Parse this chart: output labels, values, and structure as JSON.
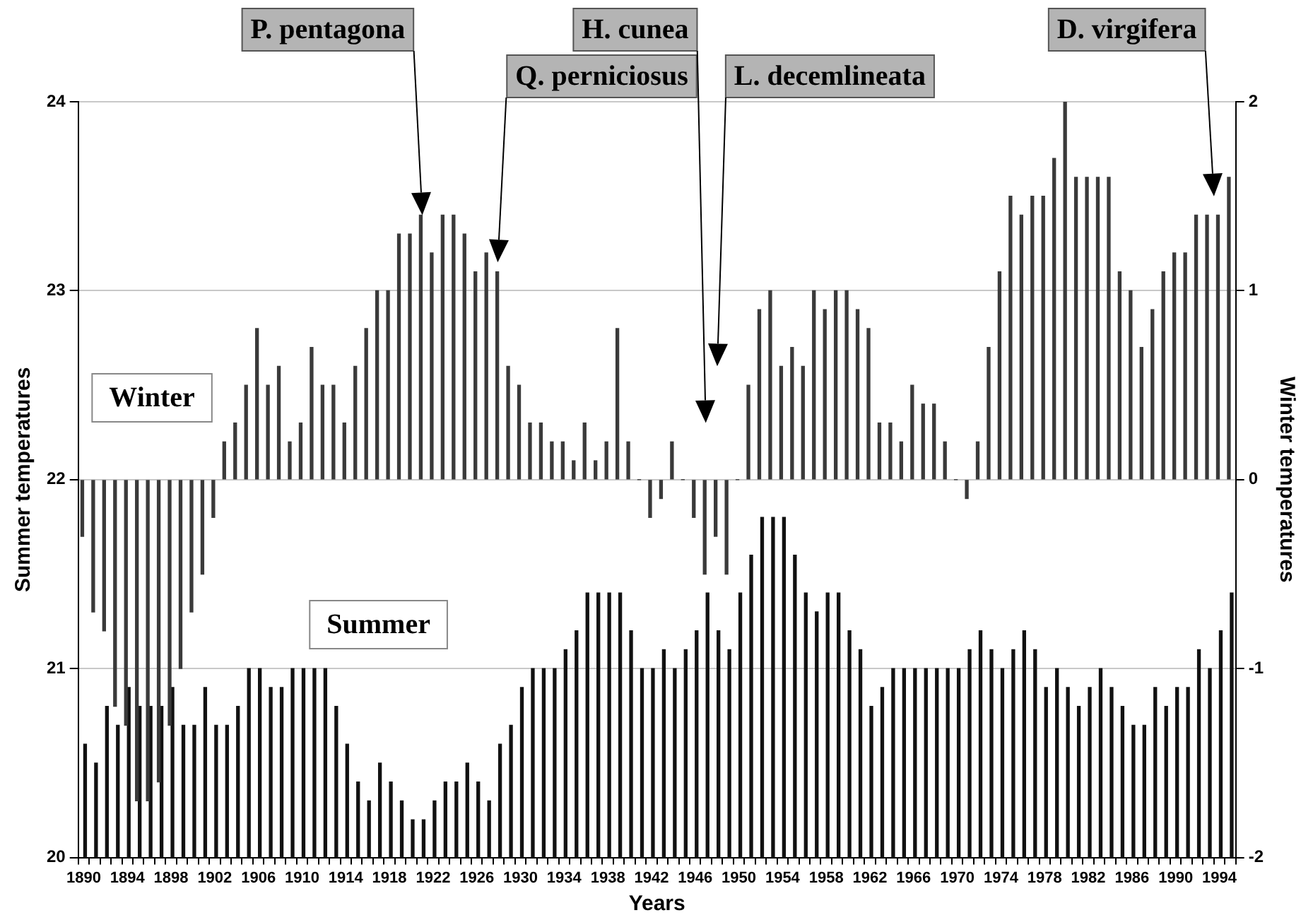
{
  "chart_data": {
    "type": "bar",
    "xlabel": "Years",
    "ylabel": "Summer temperatures",
    "y2label": "Winter temperatures",
    "categories": [
      "1890",
      null,
      null,
      null,
      "1894",
      null,
      null,
      null,
      "1898",
      null,
      null,
      null,
      "1902",
      null,
      null,
      null,
      "1906",
      null,
      null,
      null,
      "1910",
      null,
      null,
      null,
      "1914",
      null,
      null,
      null,
      "1918",
      null,
      null,
      null,
      "1922",
      null,
      null,
      null,
      "1926",
      null,
      null,
      null,
      "1930",
      null,
      null,
      null,
      "1934",
      null,
      null,
      null,
      "1938",
      null,
      null,
      null,
      "1942",
      null,
      null,
      null,
      "1946",
      null,
      null,
      null,
      "1950",
      null,
      null,
      null,
      "1954",
      null,
      null,
      null,
      "1958",
      null,
      null,
      null,
      "1962",
      null,
      null,
      null,
      "1966",
      null,
      null,
      null,
      "1970",
      null,
      null,
      null,
      "1974",
      null,
      null,
      null,
      "1978",
      null,
      null,
      null,
      "1982",
      null,
      null,
      null,
      "1986",
      null,
      null,
      null,
      "1990",
      null,
      null,
      null,
      "1994",
      null
    ],
    "series": [
      {
        "name": "Winter",
        "color": "#3a3a3a",
        "axis": "y2",
        "values": [
          -0.3,
          -0.7,
          -0.8,
          -1.2,
          -1.3,
          -1.7,
          -1.7,
          -1.6,
          -1.3,
          -1.0,
          -0.7,
          -0.5,
          -0.2,
          0.2,
          0.3,
          0.5,
          0.8,
          0.5,
          0.6,
          0.2,
          0.3,
          0.7,
          0.5,
          0.5,
          0.3,
          0.6,
          0.8,
          1.0,
          1.0,
          1.3,
          1.3,
          1.4,
          1.2,
          1.4,
          1.4,
          1.3,
          1.1,
          1.2,
          1.1,
          0.6,
          0.5,
          0.3,
          0.3,
          0.2,
          0.2,
          0.1,
          0.3,
          0.1,
          0.2,
          0.8,
          0.2,
          0,
          -0.2,
          -0.1,
          0.2,
          0,
          -0.2,
          -0.5,
          -0.3,
          -0.5,
          0,
          0.5,
          0.9,
          1.0,
          0.6,
          0.7,
          0.6,
          1.0,
          0.9,
          1.0,
          1.0,
          0.9,
          0.8,
          0.3,
          0.3,
          0.2,
          0.5,
          0.4,
          0.4,
          0.2,
          0,
          -0.1,
          0.2,
          0.7,
          1.1,
          1.5,
          1.4,
          1.5,
          1.5,
          1.7,
          2.0,
          1.6,
          1.6,
          1.6,
          1.6,
          1.1,
          1.0,
          0.7,
          0.9,
          1.1,
          1.2,
          1.2,
          1.4,
          1.4,
          1.4,
          1.6
        ]
      },
      {
        "name": "Summer",
        "color": "#111111",
        "values": [
          20.6,
          20.5,
          20.8,
          20.7,
          20.9,
          20.8,
          20.8,
          20.8,
          20.9,
          20.7,
          20.7,
          20.9,
          20.7,
          20.7,
          20.8,
          21.0,
          21.0,
          20.9,
          20.9,
          21.0,
          21.0,
          21.0,
          21.0,
          20.8,
          20.6,
          20.4,
          20.3,
          20.5,
          20.4,
          20.3,
          20.2,
          20.2,
          20.3,
          20.4,
          20.4,
          20.5,
          20.4,
          20.3,
          20.6,
          20.7,
          20.9,
          21.0,
          21.0,
          21.0,
          21.1,
          21.2,
          21.4,
          21.4,
          21.4,
          21.4,
          21.2,
          21.0,
          21.0,
          21.1,
          21.0,
          21.1,
          21.2,
          21.4,
          21.2,
          21.1,
          21.4,
          21.6,
          21.8,
          21.8,
          21.8,
          21.6,
          21.4,
          21.3,
          21.4,
          21.4,
          21.2,
          21.1,
          20.8,
          20.9,
          21.0,
          21.0,
          21.0,
          21.0,
          21.0,
          21.0,
          21.0,
          21.1,
          21.2,
          21.1,
          21.0,
          21.1,
          21.2,
          21.1,
          20.9,
          21.0,
          20.9,
          20.8,
          20.9,
          21.0,
          20.9,
          20.8,
          20.7,
          20.7,
          20.9,
          20.8,
          20.9,
          20.9,
          21.1,
          21.0,
          21.2,
          21.4
        ]
      }
    ],
    "ylim": [
      20,
      24
    ],
    "yticks": [
      20,
      21,
      22,
      23,
      24
    ],
    "y2lim": [
      -2,
      2
    ],
    "y2ticks": [
      -2,
      -1,
      0,
      1,
      2
    ],
    "grid": "y",
    "annotations": [
      "P. pentagona",
      "Q. perniciosus",
      "H. cunea",
      "L. decemlineata",
      "D. virgifera"
    ]
  }
}
